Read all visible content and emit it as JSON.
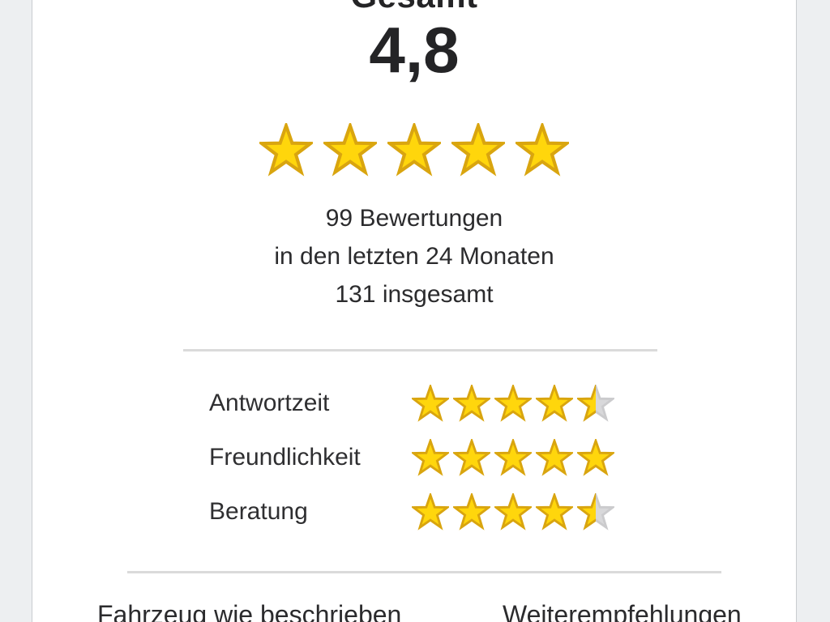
{
  "overall": {
    "title": "Gesamt",
    "score": "4,8",
    "stars": 5,
    "max_stars": 5,
    "reviews_count_line": "99 Bewertungen",
    "reviews_period_line": "in den letzten 24 Monaten",
    "reviews_total_line": "131 insgesamt"
  },
  "categories": [
    {
      "label": "Antwortzeit",
      "stars": 4.5
    },
    {
      "label": "Freundlichkeit",
      "stars": 5
    },
    {
      "label": "Beratung",
      "stars": 4.5
    }
  ],
  "footer": {
    "left_label": "Fahrzeug wie beschrieben",
    "right_label": "Weiterempfehlungen"
  },
  "colors": {
    "star_fill": "#FFD60C",
    "star_stroke": "#D9A50F",
    "star_empty_fill": "#D8D8DA",
    "star_empty_stroke": "#CBCBCD",
    "text": "#2B2B2D",
    "background": "#EDEFF1",
    "card_background": "#FFFFFF",
    "card_border": "#C9CCD0",
    "divider": "#DADADA"
  }
}
